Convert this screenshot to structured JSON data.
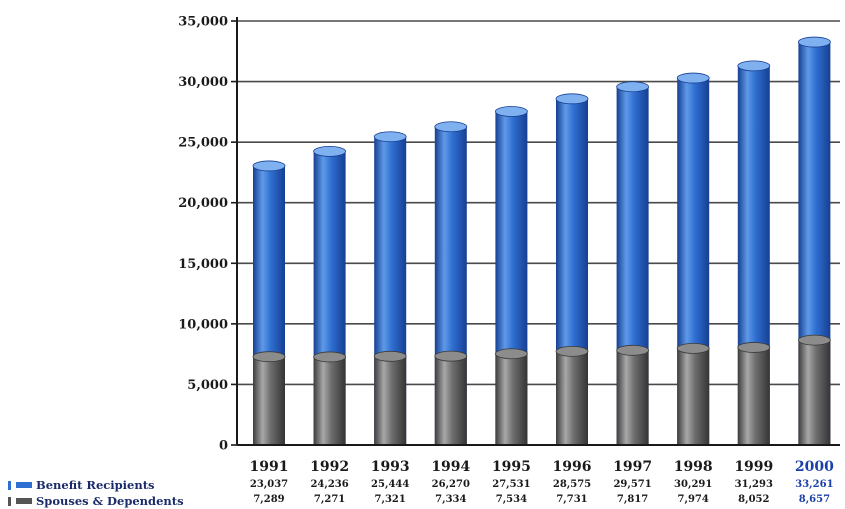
{
  "chart_data": {
    "type": "bar",
    "stacked": false,
    "overlapping": true,
    "categories": [
      "1991",
      "1992",
      "1993",
      "1994",
      "1995",
      "1996",
      "1997",
      "1998",
      "1999",
      "2000"
    ],
    "series": [
      {
        "name": "Benefit Recipients",
        "values": [
          23037,
          24236,
          25444,
          26270,
          27531,
          28575,
          29571,
          30291,
          31293,
          33261
        ],
        "color": "#2f6fd1"
      },
      {
        "name": "Spouses & Dependents",
        "values": [
          7289,
          7271,
          7321,
          7334,
          7534,
          7731,
          7817,
          7974,
          8052,
          8657
        ],
        "color": "#6e6e6e"
      }
    ],
    "value_labels": {
      "Benefit Recipients": [
        "23,037",
        "24,236",
        "25,444",
        "26,270",
        "27,531",
        "28,575",
        "29,571",
        "30,291",
        "31,293",
        "33,261"
      ],
      "Spouses & Dependents": [
        "7,289",
        "7,271",
        "7,321",
        "7,334",
        "7,534",
        "7,731",
        "7,817",
        "7,974",
        "8,052",
        "8,657"
      ]
    },
    "highlight_category": "2000",
    "ylim": [
      0,
      35000
    ],
    "yticks": [
      0,
      5000,
      10000,
      15000,
      20000,
      25000,
      30000,
      35000
    ],
    "ytick_labels": [
      "0",
      "5,000",
      "10,000",
      "15,000",
      "20,000",
      "25,000",
      "30,000",
      "35,000"
    ],
    "grid": true,
    "legend_position": "bottom-left",
    "title": "",
    "xlabel": "",
    "ylabel": ""
  },
  "legend": {
    "benefit_label": "Benefit Recipients",
    "spouses_label": "Spouses & Dependents"
  },
  "colors": {
    "highlight": "#1a3fa8"
  }
}
